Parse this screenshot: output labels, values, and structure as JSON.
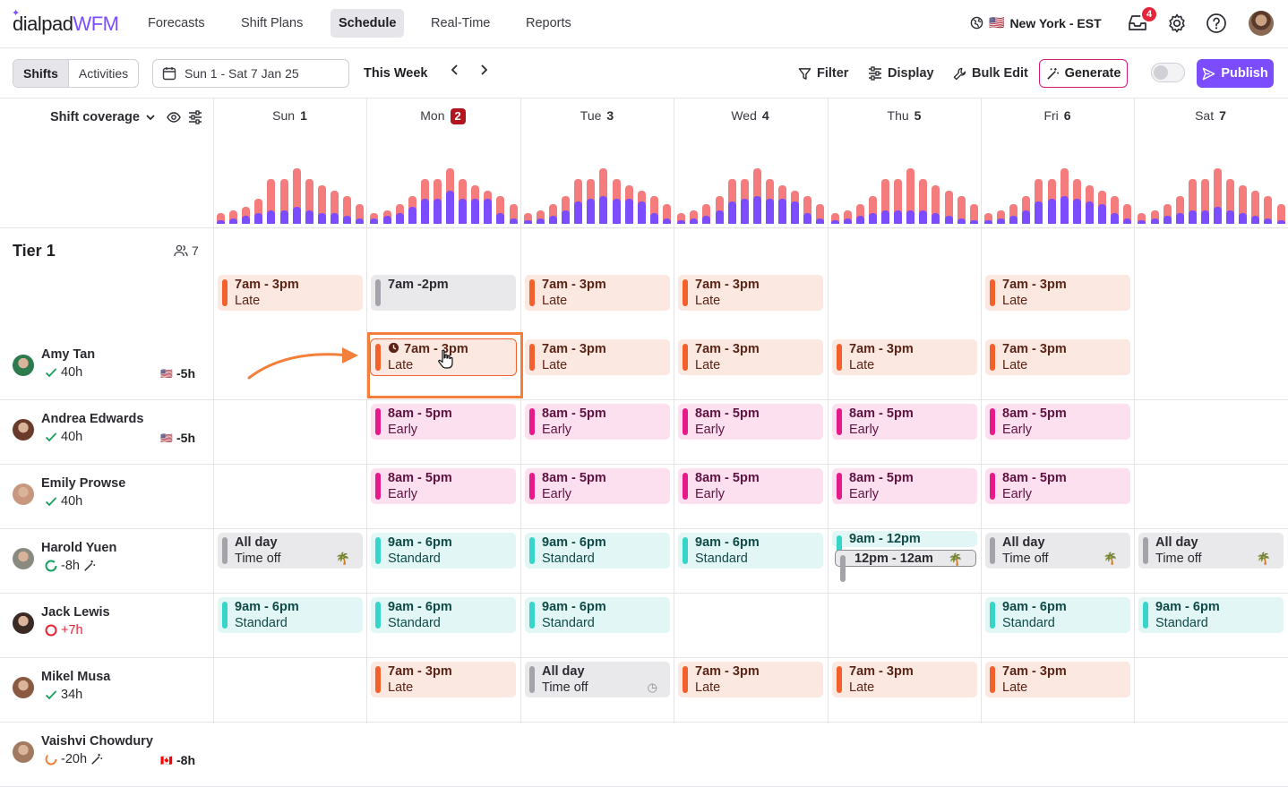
{
  "brand": {
    "part1": "dialpad",
    "part2": "WFM"
  },
  "nav": {
    "items": [
      "Forecasts",
      "Shift Plans",
      "Schedule",
      "Real-Time",
      "Reports"
    ],
    "active": "Schedule"
  },
  "timezone": {
    "flag": "🇺🇸",
    "label": "New York - EST"
  },
  "notifications": {
    "count": "4"
  },
  "toolbar": {
    "view_shifts": "Shifts",
    "view_activities": "Activities",
    "date_range": "Sun 1 - Sat 7 Jan 25",
    "this_week": "This Week",
    "filter": "Filter",
    "display": "Display",
    "bulk_edit": "Bulk Edit",
    "generate": "Generate",
    "publish": "Publish"
  },
  "coverage": {
    "label": "Shift coverage"
  },
  "days": [
    {
      "name": "Sun",
      "num": "1"
    },
    {
      "name": "Mon",
      "num": "2",
      "today": true
    },
    {
      "name": "Tue",
      "num": "3"
    },
    {
      "name": "Wed",
      "num": "4"
    },
    {
      "name": "Thu",
      "num": "5"
    },
    {
      "name": "Fri",
      "num": "6"
    },
    {
      "name": "Sat",
      "num": "7"
    }
  ],
  "coverage_bars": {
    "required_color": "#f47c7c",
    "scheduled_color": "#7b4dff",
    "required": [
      [
        4,
        5,
        6,
        9,
        16,
        16,
        20,
        16,
        14,
        12,
        10,
        7
      ],
      [
        4,
        5,
        7,
        10,
        16,
        16,
        20,
        16,
        14,
        12,
        10,
        7
      ],
      [
        4,
        5,
        7,
        10,
        16,
        16,
        20,
        16,
        14,
        12,
        10,
        7
      ],
      [
        4,
        5,
        7,
        10,
        16,
        16,
        20,
        16,
        14,
        12,
        10,
        7
      ],
      [
        4,
        5,
        7,
        10,
        16,
        16,
        20,
        16,
        14,
        12,
        10,
        7
      ],
      [
        4,
        5,
        7,
        10,
        16,
        16,
        20,
        16,
        14,
        12,
        10,
        7
      ],
      [
        4,
        5,
        7,
        10,
        16,
        16,
        20,
        16,
        14,
        12,
        10,
        7
      ]
    ],
    "scheduled": [
      [
        1,
        2,
        3,
        4,
        5,
        5,
        6,
        5,
        4,
        4,
        3,
        2
      ],
      [
        2,
        3,
        4,
        6,
        9,
        9,
        12,
        9,
        9,
        9,
        4,
        2
      ],
      [
        1,
        2,
        3,
        5,
        8,
        9,
        10,
        9,
        9,
        8,
        4,
        2
      ],
      [
        1,
        2,
        3,
        5,
        8,
        9,
        10,
        9,
        9,
        8,
        4,
        2
      ],
      [
        1,
        2,
        3,
        4,
        5,
        5,
        5,
        5,
        4,
        3,
        2,
        1
      ],
      [
        1,
        2,
        3,
        5,
        8,
        9,
        10,
        9,
        8,
        7,
        4,
        2
      ],
      [
        1,
        2,
        3,
        4,
        5,
        5,
        6,
        5,
        4,
        3,
        2,
        1
      ]
    ]
  },
  "tier": {
    "name": "Tier 1",
    "count": "7"
  },
  "employees": [
    {
      "name": "Amy Tan",
      "hours": "40h",
      "status": "check",
      "offset_flag": "🇺🇸",
      "offset": "-5h",
      "avatar": "#2c7a4e"
    },
    {
      "name": "Andrea Edwards",
      "hours": "40h",
      "status": "check",
      "offset_flag": "🇺🇸",
      "offset": "-5h",
      "avatar": "#6a3b2a"
    },
    {
      "name": "Emily Prowse",
      "hours": "40h",
      "status": "check",
      "offset_flag": "",
      "offset": "",
      "avatar": "#c8977e"
    },
    {
      "name": "Harold Yuen",
      "hours": "-8h",
      "status": "progress-green",
      "offset_flag": "",
      "offset": "",
      "avatar": "#8a8a80",
      "wand": true
    },
    {
      "name": "Jack Lewis",
      "hours": "+7h",
      "status": "over",
      "offset_flag": "",
      "offset": "",
      "avatar": "#3a2a22"
    },
    {
      "name": "Mikel Musa",
      "hours": "34h",
      "status": "check",
      "offset_flag": "",
      "offset": "",
      "avatar": "#8a5a40"
    },
    {
      "name": "Vaishvi Chowdury",
      "hours": "-20h",
      "status": "progress-orange",
      "offset_flag": "🇨🇦",
      "offset": "-8h",
      "avatar": "#a27a60",
      "wand": true
    }
  ],
  "shifts": [
    [
      {
        "day": 0,
        "time": "7am - 3pm",
        "label": "Late",
        "type": "late"
      },
      {
        "day": 1,
        "time": "7am -2pm",
        "label": "",
        "type": "off"
      },
      {
        "day": 2,
        "time": "7am - 3pm",
        "label": "Late",
        "type": "late"
      },
      {
        "day": 3,
        "time": "7am - 3pm",
        "label": "Late",
        "type": "late"
      },
      {
        "day": 5,
        "time": "7am - 3pm",
        "label": "Late",
        "type": "late"
      }
    ],
    [
      {
        "day": 1,
        "time": "7am - 3pm",
        "label": "Late",
        "type": "late",
        "clock": true,
        "selected": true
      },
      {
        "day": 2,
        "time": "7am - 3pm",
        "label": "Late",
        "type": "late"
      },
      {
        "day": 3,
        "time": "7am - 3pm",
        "label": "Late",
        "type": "late"
      },
      {
        "day": 4,
        "time": "7am - 3pm",
        "label": "Late",
        "type": "late"
      },
      {
        "day": 5,
        "time": "7am - 3pm",
        "label": "Late",
        "type": "late"
      }
    ],
    [
      {
        "day": 1,
        "time": "8am - 5pm",
        "label": "Early",
        "type": "early"
      },
      {
        "day": 2,
        "time": "8am - 5pm",
        "label": "Early",
        "type": "early"
      },
      {
        "day": 3,
        "time": "8am - 5pm",
        "label": "Early",
        "type": "early"
      },
      {
        "day": 4,
        "time": "8am - 5pm",
        "label": "Early",
        "type": "early"
      },
      {
        "day": 5,
        "time": "8am - 5pm",
        "label": "Early",
        "type": "early"
      }
    ],
    [
      {
        "day": 1,
        "time": "8am - 5pm",
        "label": "Early",
        "type": "early"
      },
      {
        "day": 2,
        "time": "8am - 5pm",
        "label": "Early",
        "type": "early"
      },
      {
        "day": 3,
        "time": "8am - 5pm",
        "label": "Early",
        "type": "early"
      },
      {
        "day": 4,
        "time": "8am - 5pm",
        "label": "Early",
        "type": "early"
      },
      {
        "day": 5,
        "time": "8am - 5pm",
        "label": "Early",
        "type": "early"
      }
    ],
    [
      {
        "day": 0,
        "time": "All day",
        "label": "Time off",
        "type": "off",
        "icon": "🌴"
      },
      {
        "day": 1,
        "time": "9am - 6pm",
        "label": "Standard",
        "type": "std"
      },
      {
        "day": 2,
        "time": "9am - 6pm",
        "label": "Standard",
        "type": "std"
      },
      {
        "day": 3,
        "time": "9am - 6pm",
        "label": "Standard",
        "type": "std"
      },
      {
        "day": 4,
        "time": "9am - 12pm",
        "label": "12pm - 12am",
        "type": "split",
        "icon": "🌴"
      },
      {
        "day": 5,
        "time": "All day",
        "label": "Time off",
        "type": "off",
        "icon": "🌴"
      },
      {
        "day": 6,
        "time": "All day",
        "label": "Time off",
        "type": "off",
        "icon": "🌴"
      }
    ],
    [
      {
        "day": 0,
        "time": "9am - 6pm",
        "label": "Standard",
        "type": "std"
      },
      {
        "day": 1,
        "time": "9am - 6pm",
        "label": "Standard",
        "type": "std"
      },
      {
        "day": 2,
        "time": "9am - 6pm",
        "label": "Standard",
        "type": "std"
      },
      {
        "day": 5,
        "time": "9am - 6pm",
        "label": "Standard",
        "type": "std"
      },
      {
        "day": 6,
        "time": "9am - 6pm",
        "label": "Standard",
        "type": "std"
      }
    ],
    [
      {
        "day": 1,
        "time": "7am - 3pm",
        "label": "Late",
        "type": "late"
      },
      {
        "day": 2,
        "time": "All day",
        "label": "Time off",
        "type": "off",
        "icon": "◷"
      },
      {
        "day": 3,
        "time": "7am - 3pm",
        "label": "Late",
        "type": "late"
      },
      {
        "day": 4,
        "time": "7am - 3pm",
        "label": "Late",
        "type": "late"
      },
      {
        "day": 5,
        "time": "7am - 3pm",
        "label": "Late",
        "type": "late"
      }
    ]
  ]
}
